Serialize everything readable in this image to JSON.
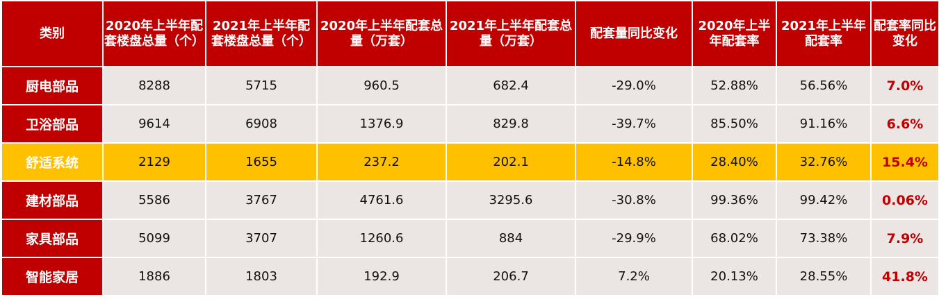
{
  "chart_data": {
    "type": "table",
    "columns": [
      "类别",
      "2020年上半年配套楼盘总量（个）",
      "2021年上半年配套楼盘总量（个）",
      "2020年上半年配套总量（万套）",
      "2021年上半年配套总量（万套）",
      "配套量同比变化",
      "2020年上半年配套率",
      "2021年上半年配套率",
      "配套率同比变化"
    ],
    "rows": [
      [
        "厨电部品",
        "8288",
        "5715",
        "960.5",
        "682.4",
        "-29.0%",
        "52.88%",
        "56.56%",
        "7.0%"
      ],
      [
        "卫浴部品",
        "9614",
        "6908",
        "1376.9",
        "829.8",
        "-39.7%",
        "85.50%",
        "91.16%",
        "6.6%"
      ],
      [
        "舒适系统",
        "2129",
        "1655",
        "237.2",
        "202.1",
        "-14.8%",
        "28.40%",
        "32.76%",
        "15.4%"
      ],
      [
        "建材部品",
        "5586",
        "3767",
        "4761.6",
        "3295.6",
        "-30.8%",
        "99.36%",
        "99.42%",
        "0.06%"
      ],
      [
        "家具部品",
        "5099",
        "3707",
        "1260.6",
        "884",
        "-29.9%",
        "68.02%",
        "73.38%",
        "7.9%"
      ],
      [
        "智能家居",
        "1886",
        "1803",
        "192.9",
        "206.7",
        "7.2%",
        "20.13%",
        "28.55%",
        "41.8%"
      ]
    ],
    "highlighted_row": "舒适系统",
    "colors": {
      "header_bg": "#c00000",
      "header_text": "#ffffff",
      "cell_bg": "#ebe5e3",
      "highlight_bg": "#ffc000",
      "change_text": "#c00000"
    }
  }
}
